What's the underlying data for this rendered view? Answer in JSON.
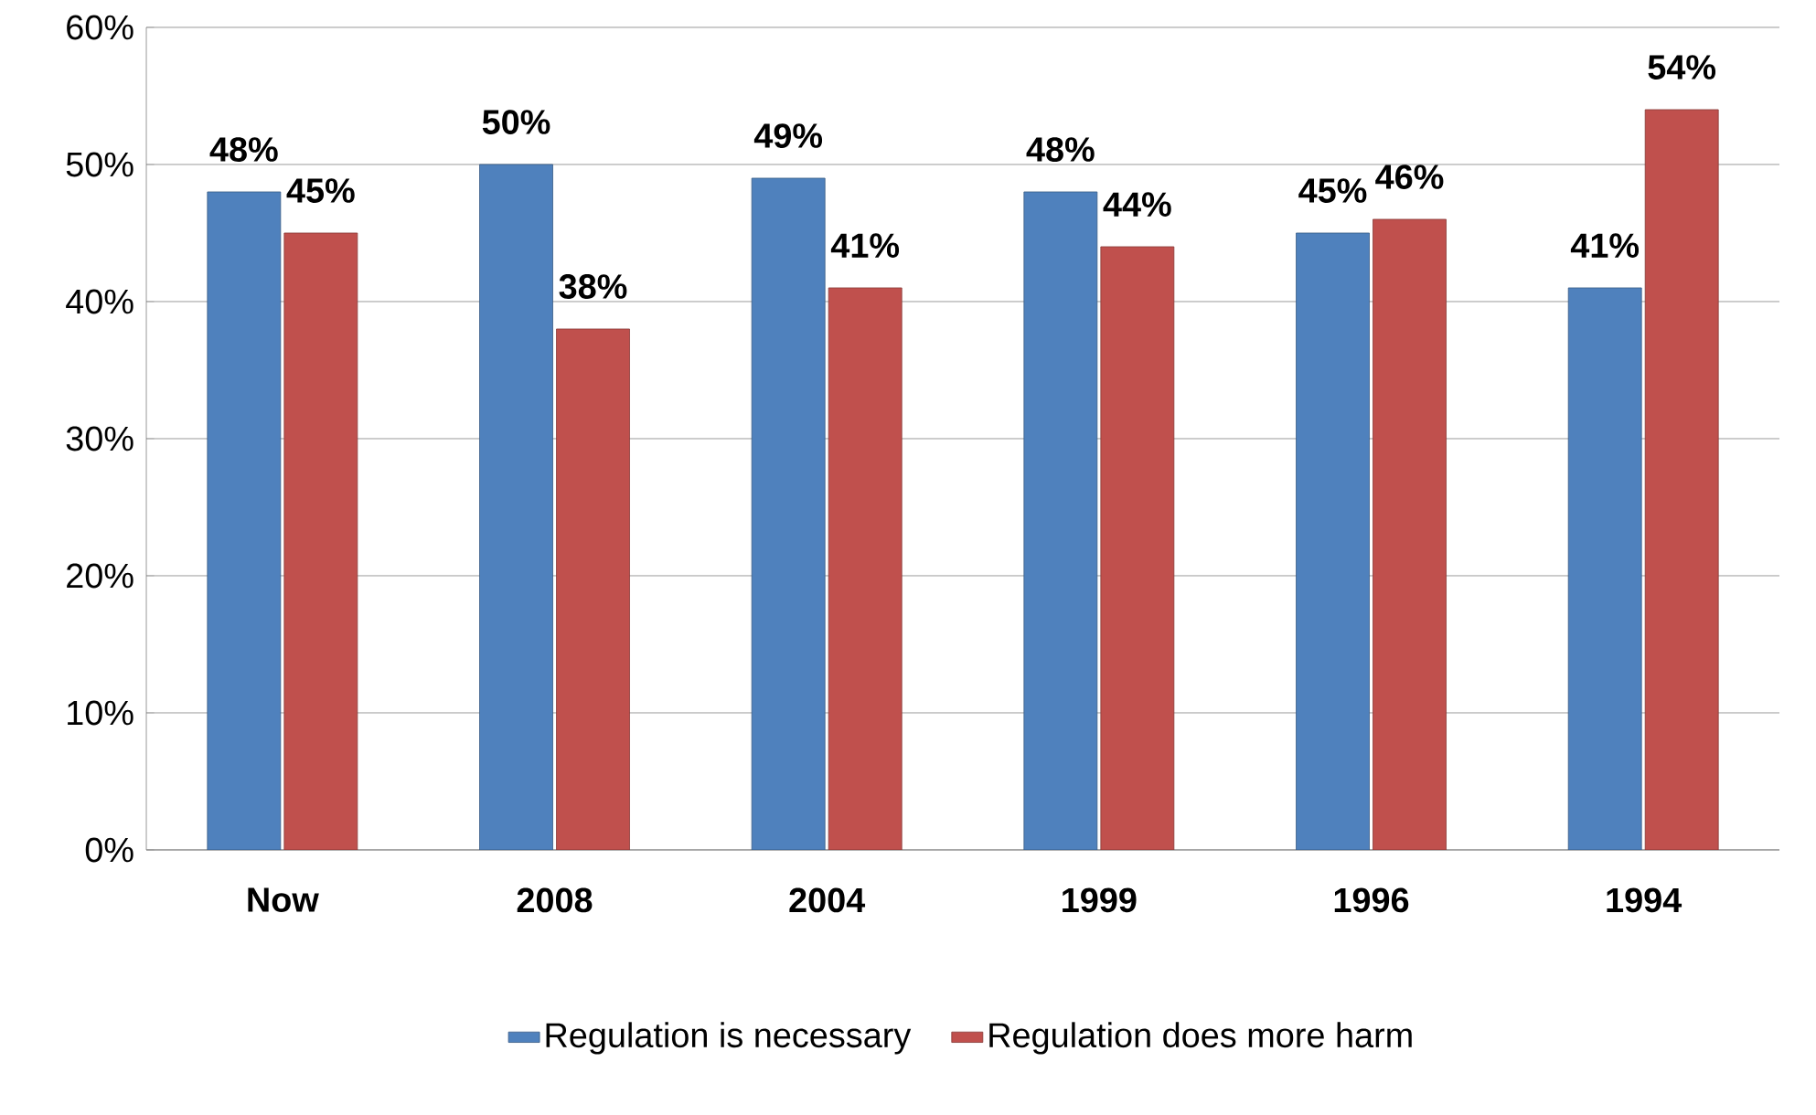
{
  "chart_data": {
    "type": "bar",
    "categories": [
      "Now",
      "2008",
      "2004",
      "1999",
      "1996",
      "1994"
    ],
    "series": [
      {
        "name": "Regulation is necessary",
        "color": "#4f81bd",
        "values": [
          48,
          50,
          49,
          48,
          45,
          41
        ],
        "value_labels": [
          "48%",
          "50%",
          "49%",
          "48%",
          "45%",
          "41%"
        ]
      },
      {
        "name": "Regulation does more harm",
        "color": "#c0504d",
        "values": [
          45,
          38,
          41,
          44,
          46,
          54
        ],
        "value_labels": [
          "45%",
          "38%",
          "41%",
          "44%",
          "46%",
          "54%"
        ]
      }
    ],
    "ylim": [
      0,
      60
    ],
    "yticks": [
      {
        "value": 0,
        "label": "0%"
      },
      {
        "value": 10,
        "label": "10%"
      },
      {
        "value": 20,
        "label": "20%"
      },
      {
        "value": 30,
        "label": "30%"
      },
      {
        "value": 40,
        "label": "40%"
      },
      {
        "value": 50,
        "label": "50%"
      },
      {
        "value": 60,
        "label": "60%"
      }
    ],
    "grid": "y",
    "legend": "bottom"
  }
}
